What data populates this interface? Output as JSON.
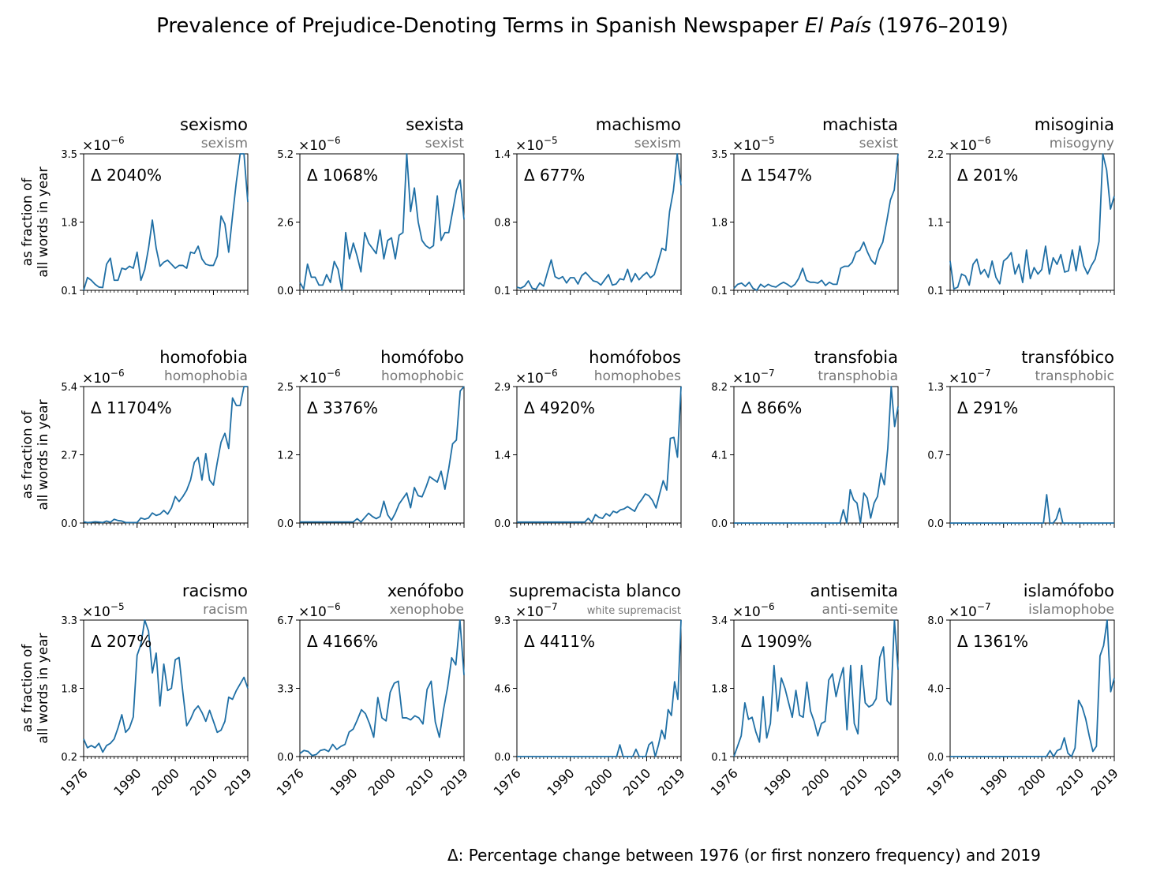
{
  "title": {
    "prefix": "Prevalence of Prejudice-Denoting Terms in Spanish Newspaper ",
    "italic": "El País",
    "suffix": " (1976–2019)"
  },
  "footnote": "Δ: Percentage change between 1976 (or first nonzero frequency) and 2019",
  "colors": {
    "line": "#1f6fa5",
    "subtitle": "#777777"
  },
  "chart_data": [
    {
      "type": "line",
      "title": "sexismo",
      "subtitle": "sexism",
      "delta": "Δ 2040%",
      "ylabel": "as fraction of all words in year",
      "exponent": "−6",
      "ylim": [
        0.1,
        3.5
      ],
      "yticks": [
        "0.1",
        "1.8",
        "3.5"
      ],
      "xticks": [],
      "x_start": 1976,
      "values": [
        0.1,
        0.42,
        0.35,
        0.25,
        0.18,
        0.17,
        0.75,
        0.9,
        0.35,
        0.35,
        0.65,
        0.62,
        0.7,
        0.65,
        1.05,
        0.35,
        0.62,
        1.15,
        1.85,
        1.15,
        0.7,
        0.8,
        0.85,
        0.75,
        0.65,
        0.72,
        0.72,
        0.65,
        1.05,
        1.02,
        1.2,
        0.88,
        0.75,
        0.72,
        0.72,
        0.95,
        1.95,
        1.75,
        1.05,
        1.95,
        2.8,
        3.5,
        3.5,
        2.3
      ]
    },
    {
      "type": "line",
      "title": "sexista",
      "subtitle": "sexist",
      "delta": "Δ 1068%",
      "ylabel": "",
      "exponent": "−6",
      "ylim": [
        0.0,
        5.2
      ],
      "yticks": [
        "0.0",
        "2.6",
        "5.2"
      ],
      "xticks": [],
      "x_start": 1976,
      "values": [
        0.3,
        0.05,
        1.0,
        0.5,
        0.5,
        0.2,
        0.2,
        0.6,
        0.3,
        1.1,
        0.8,
        0.0,
        2.2,
        1.2,
        1.8,
        1.3,
        0.7,
        2.2,
        1.8,
        1.6,
        1.4,
        2.3,
        1.2,
        1.9,
        2.0,
        1.2,
        2.1,
        2.2,
        5.2,
        3.0,
        3.9,
        2.6,
        1.9,
        1.7,
        1.6,
        1.7,
        3.6,
        1.9,
        2.2,
        2.2,
        3.0,
        3.8,
        4.2,
        2.7
      ]
    },
    {
      "type": "line",
      "title": "machismo",
      "subtitle": "sexism",
      "delta": "Δ 677%",
      "ylabel": "",
      "exponent": "−5",
      "ylim": [
        0.1,
        1.4
      ],
      "yticks": [
        "0.1",
        "0.8",
        "1.4"
      ],
      "xticks": [],
      "x_start": 1976,
      "values": [
        0.13,
        0.12,
        0.14,
        0.19,
        0.12,
        0.11,
        0.17,
        0.14,
        0.27,
        0.39,
        0.23,
        0.21,
        0.23,
        0.17,
        0.22,
        0.22,
        0.16,
        0.24,
        0.27,
        0.23,
        0.19,
        0.18,
        0.15,
        0.2,
        0.25,
        0.15,
        0.16,
        0.21,
        0.2,
        0.3,
        0.18,
        0.26,
        0.2,
        0.24,
        0.27,
        0.22,
        0.25,
        0.37,
        0.5,
        0.48,
        0.85,
        1.05,
        1.4,
        1.1
      ]
    },
    {
      "type": "line",
      "title": "machista",
      "subtitle": "sexist",
      "delta": "Δ 1547%",
      "ylabel": "",
      "exponent": "−5",
      "ylim": [
        0.1,
        3.5
      ],
      "yticks": [
        "0.1",
        "1.8",
        "3.5"
      ],
      "xticks": [],
      "x_start": 1976,
      "values": [
        0.15,
        0.25,
        0.28,
        0.2,
        0.3,
        0.15,
        0.1,
        0.25,
        0.18,
        0.25,
        0.2,
        0.18,
        0.25,
        0.3,
        0.25,
        0.18,
        0.25,
        0.4,
        0.65,
        0.35,
        0.3,
        0.3,
        0.28,
        0.35,
        0.22,
        0.3,
        0.25,
        0.25,
        0.65,
        0.7,
        0.7,
        0.8,
        1.05,
        1.1,
        1.3,
        1.05,
        0.85,
        0.75,
        1.1,
        1.3,
        1.8,
        2.35,
        2.6,
        3.5
      ]
    },
    {
      "type": "line",
      "title": "misoginia",
      "subtitle": "misogyny",
      "delta": "Δ 201%",
      "ylabel": "",
      "exponent": "−6",
      "ylim": [
        0.1,
        2.2
      ],
      "yticks": [
        "0.1",
        "1.1",
        "2.2"
      ],
      "xticks": [],
      "x_start": 1976,
      "values": [
        0.55,
        0.12,
        0.15,
        0.35,
        0.32,
        0.18,
        0.5,
        0.58,
        0.35,
        0.42,
        0.3,
        0.55,
        0.3,
        0.2,
        0.55,
        0.6,
        0.68,
        0.35,
        0.5,
        0.22,
        0.72,
        0.28,
        0.45,
        0.35,
        0.42,
        0.78,
        0.35,
        0.6,
        0.5,
        0.65,
        0.38,
        0.4,
        0.72,
        0.4,
        0.78,
        0.48,
        0.35,
        0.48,
        0.58,
        0.85,
        2.2,
        1.95,
        1.35,
        1.55
      ]
    },
    {
      "type": "line",
      "title": "homofobia",
      "subtitle": "homophobia",
      "delta": "Δ 11704%",
      "ylabel": "as fraction of all words in year",
      "exponent": "−6",
      "ylim": [
        0.0,
        5.4
      ],
      "yticks": [
        "0.0",
        "2.7",
        "5.4"
      ],
      "xticks": [],
      "x_start": 1976,
      "values": [
        0.05,
        0.02,
        0.03,
        0.05,
        0.04,
        0.02,
        0.08,
        0.03,
        0.15,
        0.1,
        0.08,
        0.02,
        0.02,
        0.02,
        0.02,
        0.2,
        0.15,
        0.2,
        0.4,
        0.3,
        0.35,
        0.5,
        0.35,
        0.6,
        1.05,
        0.85,
        1.05,
        1.3,
        1.7,
        2.4,
        2.6,
        1.7,
        2.75,
        1.7,
        1.5,
        2.4,
        3.2,
        3.55,
        2.95,
        4.95,
        4.65,
        4.65,
        5.4,
        5.4
      ]
    },
    {
      "type": "line",
      "title": "homófobo",
      "subtitle": "homophobic",
      "delta": "Δ 3376%",
      "ylabel": "",
      "exponent": "−6",
      "ylim": [
        0.0,
        2.5
      ],
      "yticks": [
        "0.0",
        "1.2",
        "2.5"
      ],
      "xticks": [],
      "x_start": 1976,
      "values": [
        0.02,
        0.02,
        0.02,
        0.02,
        0.02,
        0.02,
        0.02,
        0.02,
        0.02,
        0.02,
        0.02,
        0.02,
        0.02,
        0.02,
        0.02,
        0.08,
        0.02,
        0.1,
        0.18,
        0.12,
        0.08,
        0.12,
        0.4,
        0.15,
        0.05,
        0.18,
        0.35,
        0.45,
        0.55,
        0.28,
        0.65,
        0.5,
        0.48,
        0.65,
        0.85,
        0.8,
        0.75,
        0.95,
        0.62,
        1.0,
        1.45,
        1.52,
        2.42,
        2.5
      ]
    },
    {
      "type": "line",
      "title": "homófobos",
      "subtitle": "homophobes",
      "delta": "Δ 4920%",
      "ylabel": "",
      "exponent": "−6",
      "ylim": [
        0.0,
        2.9
      ],
      "yticks": [
        "0.0",
        "1.4",
        "2.9"
      ],
      "xticks": [],
      "x_start": 1976,
      "values": [
        0.02,
        0.02,
        0.02,
        0.02,
        0.02,
        0.02,
        0.02,
        0.02,
        0.02,
        0.02,
        0.02,
        0.02,
        0.02,
        0.02,
        0.02,
        0.02,
        0.02,
        0.02,
        0.02,
        0.02,
        0.1,
        0.02,
        0.18,
        0.12,
        0.1,
        0.2,
        0.15,
        0.25,
        0.22,
        0.28,
        0.3,
        0.35,
        0.3,
        0.25,
        0.4,
        0.5,
        0.62,
        0.58,
        0.48,
        0.32,
        0.62,
        0.9,
        0.7,
        1.8,
        1.82,
        1.4,
        2.9
      ]
    },
    {
      "type": "line",
      "title": "transfobia",
      "subtitle": "transphobia",
      "delta": "Δ 866%",
      "ylabel": "",
      "exponent": "−7",
      "ylim": [
        0.0,
        8.2
      ],
      "yticks": [
        "0.0",
        "4.1",
        "8.2"
      ],
      "xticks": [],
      "x_start": 1976,
      "values": [
        0.0,
        0.0,
        0.0,
        0.0,
        0.0,
        0.0,
        0.0,
        0.0,
        0.0,
        0.0,
        0.0,
        0.0,
        0.0,
        0.0,
        0.0,
        0.0,
        0.0,
        0.0,
        0.0,
        0.0,
        0.0,
        0.0,
        0.0,
        0.0,
        0.0,
        0.0,
        0.0,
        0.0,
        0.0,
        0.0,
        0.0,
        0.0,
        0.8,
        0.0,
        2.0,
        1.4,
        1.2,
        0.0,
        1.8,
        1.5,
        0.3,
        1.2,
        1.6,
        3.0,
        2.3,
        4.5,
        8.2,
        5.8,
        7.0
      ]
    },
    {
      "type": "line",
      "title": "transfóbico",
      "subtitle": "transphobic",
      "delta": "Δ 291%",
      "ylabel": "",
      "exponent": "−7",
      "ylim": [
        0.0,
        1.3
      ],
      "yticks": [
        "0.0",
        "0.7",
        "1.3"
      ],
      "xticks": [],
      "x_start": 1976,
      "values": [
        0.0,
        0.0,
        0.0,
        0.0,
        0.0,
        0.0,
        0.0,
        0.0,
        0.0,
        0.0,
        0.0,
        0.0,
        0.0,
        0.0,
        0.0,
        0.0,
        0.0,
        0.0,
        0.0,
        0.0,
        0.0,
        0.0,
        0.0,
        0.0,
        0.0,
        0.0,
        0.0,
        0.0,
        0.0,
        0.0,
        0.27,
        0.0,
        0.0,
        0.04,
        0.14,
        0.0,
        0.0,
        0.0,
        0.0,
        0.0,
        0.0,
        0.0,
        0.0,
        0.0,
        0.0,
        0.0,
        0.0,
        0.0,
        0.0,
        0.0,
        0.0,
        0.0
      ]
    },
    {
      "type": "line",
      "title": "racismo",
      "subtitle": "racism",
      "delta": "Δ 207%",
      "ylabel": "as fraction of all words in year",
      "exponent": "−5",
      "ylim": [
        0.2,
        3.3
      ],
      "yticks": [
        "0.2",
        "1.8",
        "3.3"
      ],
      "xticks": [
        "1976",
        "1990",
        "2000",
        "2010",
        "2019"
      ],
      "x_start": 1976,
      "values": [
        0.6,
        0.4,
        0.45,
        0.4,
        0.5,
        0.3,
        0.45,
        0.5,
        0.6,
        0.85,
        1.15,
        0.75,
        0.85,
        1.1,
        2.5,
        2.75,
        3.3,
        3.05,
        2.1,
        2.55,
        1.35,
        2.3,
        1.7,
        1.75,
        2.4,
        2.45,
        1.65,
        0.9,
        1.05,
        1.25,
        1.35,
        1.2,
        1.0,
        1.25,
        1.0,
        0.75,
        0.8,
        1.0,
        1.55,
        1.5,
        1.7,
        1.85,
        2.0,
        1.75
      ]
    },
    {
      "type": "line",
      "title": "xenófobo",
      "subtitle": "xenophobe",
      "delta": "Δ 4166%",
      "ylabel": "",
      "exponent": "−6",
      "ylim": [
        0.0,
        6.7
      ],
      "yticks": [
        "0.0",
        "3.3",
        "6.7"
      ],
      "xticks": [
        "1976",
        "1990",
        "2000",
        "2010",
        "2019"
      ],
      "x_start": 1976,
      "values": [
        0.15,
        0.3,
        0.25,
        0.05,
        0.1,
        0.3,
        0.35,
        0.25,
        0.6,
        0.35,
        0.5,
        0.6,
        1.2,
        1.35,
        1.8,
        2.3,
        2.1,
        1.6,
        0.95,
        2.9,
        1.9,
        1.75,
        3.15,
        3.6,
        3.7,
        1.9,
        1.9,
        1.8,
        2.0,
        1.9,
        1.6,
        3.3,
        3.7,
        1.7,
        0.95,
        2.3,
        3.4,
        4.85,
        4.5,
        6.7,
        4.0
      ]
    },
    {
      "type": "line",
      "title": "supremacista blanco",
      "subtitle": "white supremacist",
      "delta": "Δ 4411%",
      "ylabel": "",
      "exponent": "−7",
      "ylim": [
        0.0,
        9.3
      ],
      "yticks": [
        "0.0",
        "4.6",
        "9.3"
      ],
      "xticks": [
        "1976",
        "1990",
        "2000",
        "2010",
        "2019"
      ],
      "x_start": 1976,
      "values": [
        0.0,
        0.0,
        0.0,
        0.0,
        0.0,
        0.0,
        0.0,
        0.0,
        0.0,
        0.0,
        0.0,
        0.0,
        0.0,
        0.0,
        0.0,
        0.0,
        0.0,
        0.0,
        0.0,
        0.0,
        0.0,
        0.0,
        0.0,
        0.0,
        0.0,
        0.0,
        0.0,
        0.0,
        0.0,
        0.0,
        0.0,
        0.0,
        0.8,
        0.0,
        0.0,
        0.0,
        0.0,
        0.5,
        0.0,
        0.0,
        0.0,
        0.8,
        1.0,
        0.0,
        0.8,
        1.8,
        1.2,
        3.2,
        2.8,
        5.1,
        3.9,
        9.3
      ]
    },
    {
      "type": "line",
      "title": "antisemita",
      "subtitle": "anti-semite",
      "delta": "Δ 1909%",
      "ylabel": "",
      "exponent": "−6",
      "ylim": [
        0.1,
        3.4
      ],
      "yticks": [
        "0.1",
        "1.8",
        "3.4"
      ],
      "xticks": [
        "1976",
        "1990",
        "2000",
        "2010",
        "2019"
      ],
      "x_start": 1976,
      "values": [
        0.1,
        0.35,
        0.6,
        1.4,
        1.0,
        1.05,
        0.7,
        0.45,
        1.55,
        0.55,
        0.9,
        2.3,
        1.2,
        2.0,
        1.75,
        1.4,
        1.05,
        1.7,
        1.1,
        1.05,
        1.9,
        1.2,
        0.95,
        0.6,
        0.9,
        0.95,
        1.95,
        2.1,
        1.55,
        1.95,
        2.25,
        0.75,
        2.3,
        0.9,
        0.65,
        2.3,
        1.4,
        1.3,
        1.35,
        1.5,
        2.5,
        2.75,
        1.45,
        1.35,
        3.4,
        2.2
      ]
    },
    {
      "type": "line",
      "title": "islamófobo",
      "subtitle": "islamophobe",
      "delta": "Δ 1361%",
      "ylabel": "",
      "exponent": "−7",
      "ylim": [
        0.0,
        8.0
      ],
      "yticks": [
        "0.0",
        "4.0",
        "8.0"
      ],
      "xticks": [
        "1976",
        "1990",
        "2000",
        "2010",
        "2019"
      ],
      "x_start": 1976,
      "values": [
        0.0,
        0.0,
        0.0,
        0.0,
        0.0,
        0.0,
        0.0,
        0.0,
        0.0,
        0.0,
        0.0,
        0.0,
        0.0,
        0.0,
        0.0,
        0.0,
        0.0,
        0.0,
        0.0,
        0.0,
        0.0,
        0.0,
        0.0,
        0.0,
        0.0,
        0.0,
        0.0,
        0.0,
        0.35,
        0.0,
        0.35,
        0.45,
        1.1,
        0.2,
        0.0,
        0.5,
        3.3,
        2.9,
        2.2,
        1.2,
        0.3,
        0.6,
        5.9,
        6.5,
        8.0,
        3.8,
        4.6
      ]
    }
  ]
}
